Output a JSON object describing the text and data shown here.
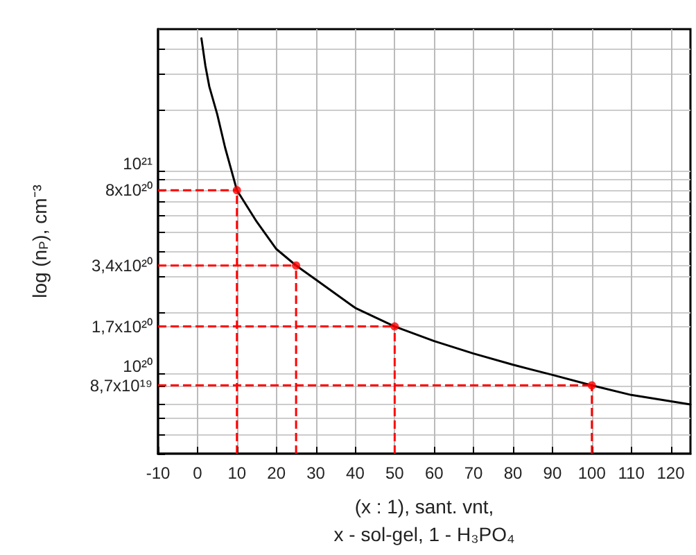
{
  "chart_data": {
    "type": "line",
    "xlabel": "(x : 1), sant. vnt,\nx - sol-gel, 1 - H₃PO₄",
    "ylabel": "log (n$_{P}$), cm⁻³",
    "log": "y",
    "grid": true,
    "xlim": [
      -10,
      125
    ],
    "xticks": [
      -10,
      0,
      10,
      20,
      30,
      40,
      50,
      60,
      70,
      80,
      90,
      100,
      110,
      120
    ],
    "ylim": [
      4e+19,
      5e+21
    ],
    "yticks": [
      {
        "value": 4e+19,
        "label": null
      },
      {
        "value": 5e+19,
        "label": null
      },
      {
        "value": 6e+19,
        "label": null
      },
      {
        "value": 7e+19,
        "label": null
      },
      {
        "value": 8.7e+19,
        "label": "8,7x10¹⁹"
      },
      {
        "value": 1e+20,
        "label": "10²⁰"
      },
      {
        "value": 1.7e+20,
        "label": "1,7x10²⁰"
      },
      {
        "value": 2e+20,
        "label": null
      },
      {
        "value": 3e+20,
        "label": null
      },
      {
        "value": 3.4e+20,
        "label": "3,4x10²⁰"
      },
      {
        "value": 4e+20,
        "label": null
      },
      {
        "value": 5e+20,
        "label": null
      },
      {
        "value": 6e+20,
        "label": null
      },
      {
        "value": 7e+20,
        "label": null
      },
      {
        "value": 8e+20,
        "label": "8x10²⁰"
      },
      {
        "value": 9e+20,
        "label": null
      },
      {
        "value": 1e+21,
        "label": "10²¹"
      },
      {
        "value": 2e+21,
        "label": null
      },
      {
        "value": 3e+21,
        "label": null
      },
      {
        "value": 4e+21,
        "label": null
      },
      {
        "value": 5e+21,
        "label": null
      }
    ],
    "series": [
      {
        "color": "#000000",
        "marker": "none",
        "line_style": "solid",
        "x": [
          1,
          2,
          3,
          5,
          7,
          10,
          15,
          20,
          25,
          30,
          40,
          50,
          60,
          70,
          80,
          90,
          100,
          110,
          125
        ],
        "values": [
          4.5e+21,
          3.3e+21,
          2.6e+21,
          1.9e+21,
          1.3e+21,
          8e+20,
          5.6e+20,
          4.1e+20,
          3.4e+20,
          2.9e+20,
          2.1e+20,
          1.7e+20,
          1.44e+20,
          1.25e+20,
          1.1e+20,
          9.8e+19,
          8.7e+19,
          7.8e+19,
          7e+19
        ]
      },
      {
        "type": "scatter",
        "color": "#ff0000",
        "marker": "circle",
        "x": [
          10,
          25,
          50,
          100
        ],
        "values": [
          8e+20,
          3.4e+20,
          1.7e+20,
          8.7e+19
        ]
      }
    ],
    "ref_lines": [
      {
        "axis": "x",
        "value": 10,
        "color": "#ff0000",
        "line_style": "dashed"
      },
      {
        "axis": "x",
        "value": 25,
        "color": "#ff0000",
        "line_style": "dashed"
      },
      {
        "axis": "x",
        "value": 50,
        "color": "#ff0000",
        "line_style": "dashed"
      },
      {
        "axis": "x",
        "value": 100,
        "color": "#ff0000",
        "line_style": "dashed"
      },
      {
        "axis": "y",
        "value": 8e+20,
        "color": "#ff0000",
        "line_style": "dashed"
      },
      {
        "axis": "y",
        "value": 3.4e+20,
        "color": "#ff0000",
        "line_style": "dashed"
      },
      {
        "axis": "y",
        "value": 1.7e+20,
        "color": "#ff0000",
        "line_style": "dashed"
      },
      {
        "axis": "y",
        "value": 8.7e+19,
        "color": "#ff0000",
        "line_style": "dashed"
      }
    ]
  }
}
